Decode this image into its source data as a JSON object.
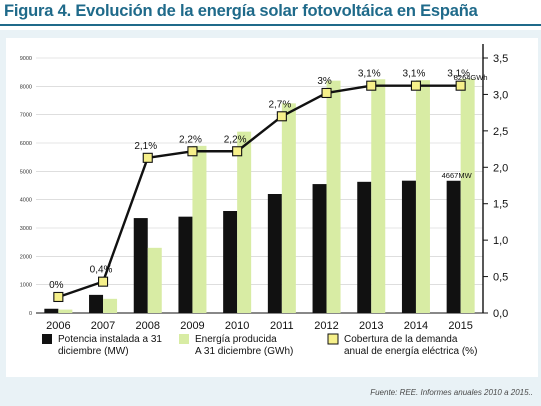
{
  "title": "Figura 4. Evolución de la energía solar fotovoltáica en España",
  "source": "Fuente: REE. Informes anuales 2010 a 2015..",
  "chart_data": {
    "type": "bar",
    "categories": [
      "2006",
      "2007",
      "2008",
      "2009",
      "2010",
      "2011",
      "2012",
      "2013",
      "2014",
      "2015"
    ],
    "ylim_left": [
      0,
      9000
    ],
    "yticks_left": [
      "0",
      "1000",
      "2000",
      "3000",
      "4000",
      "5000",
      "6000",
      "7000",
      "8000",
      "9000"
    ],
    "ylim_right": [
      0,
      3.5
    ],
    "yticks_right": [
      "0,0",
      "0,5",
      "1,0",
      "1,5",
      "2,0",
      "2,5",
      "3,0",
      "3,5"
    ],
    "grid": true,
    "legend_position": "bottom",
    "series": [
      {
        "name": "Potencia instalada a 31 diciembre (MW)",
        "kind": "bar",
        "color": "#111111",
        "values": [
          150,
          640,
          3350,
          3400,
          3600,
          4200,
          4550,
          4630,
          4670,
          4667
        ]
      },
      {
        "name": "Energía producida A 31 diciembre (GWh)",
        "kind": "bar",
        "color": "#d8eca4",
        "values": [
          120,
          500,
          2300,
          5900,
          6400,
          7400,
          8200,
          8250,
          8218,
          8264
        ]
      },
      {
        "name": "Cobertura de la demanda anual de energía eléctrica (%)",
        "kind": "line",
        "axis": "right",
        "color": "#111111",
        "marker_color": "#f6f08a",
        "values": [
          0.22,
          0.43,
          2.13,
          2.22,
          2.22,
          2.7,
          3.02,
          3.12,
          3.12,
          3.12
        ],
        "labels": [
          "0%",
          "0,4%",
          "2,1%",
          "2,2%",
          "2,2%",
          "2,7%",
          "3%",
          "3,1%",
          "3,1%",
          "3,1%"
        ]
      }
    ],
    "annotations": [
      {
        "text": "8264GWh",
        "category": "2015",
        "value": 8264
      },
      {
        "text": "4667MW",
        "category": "2015",
        "value": 4667
      }
    ]
  }
}
